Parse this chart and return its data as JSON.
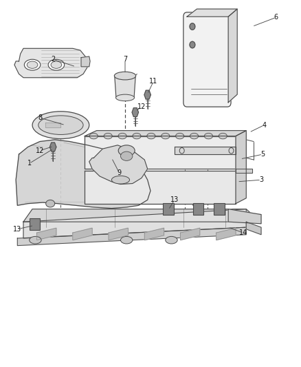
{
  "bg_color": "#ffffff",
  "line_color": "#4a4a4a",
  "figsize": [
    4.38,
    5.33
  ],
  "dpi": 100,
  "callouts": [
    [
      1,
      0.095,
      0.555,
      0.175,
      0.595
    ],
    [
      2,
      0.175,
      0.84,
      0.25,
      0.82
    ],
    [
      3,
      0.87,
      0.51,
      0.79,
      0.505
    ],
    [
      4,
      0.88,
      0.66,
      0.83,
      0.64
    ],
    [
      5,
      0.875,
      0.58,
      0.8,
      0.567
    ],
    [
      6,
      0.92,
      0.955,
      0.84,
      0.93
    ],
    [
      7,
      0.415,
      0.84,
      0.415,
      0.8
    ],
    [
      8,
      0.13,
      0.68,
      0.215,
      0.66
    ],
    [
      9,
      0.395,
      0.53,
      0.37,
      0.57
    ],
    [
      11,
      0.51,
      0.78,
      0.49,
      0.745
    ],
    [
      12,
      0.13,
      0.59,
      0.175,
      0.602
    ],
    [
      12,
      0.47,
      0.71,
      0.45,
      0.698
    ],
    [
      13,
      0.055,
      0.375,
      0.11,
      0.385
    ],
    [
      13,
      0.58,
      0.455,
      0.56,
      0.428
    ],
    [
      14,
      0.81,
      0.365,
      0.76,
      0.38
    ]
  ]
}
